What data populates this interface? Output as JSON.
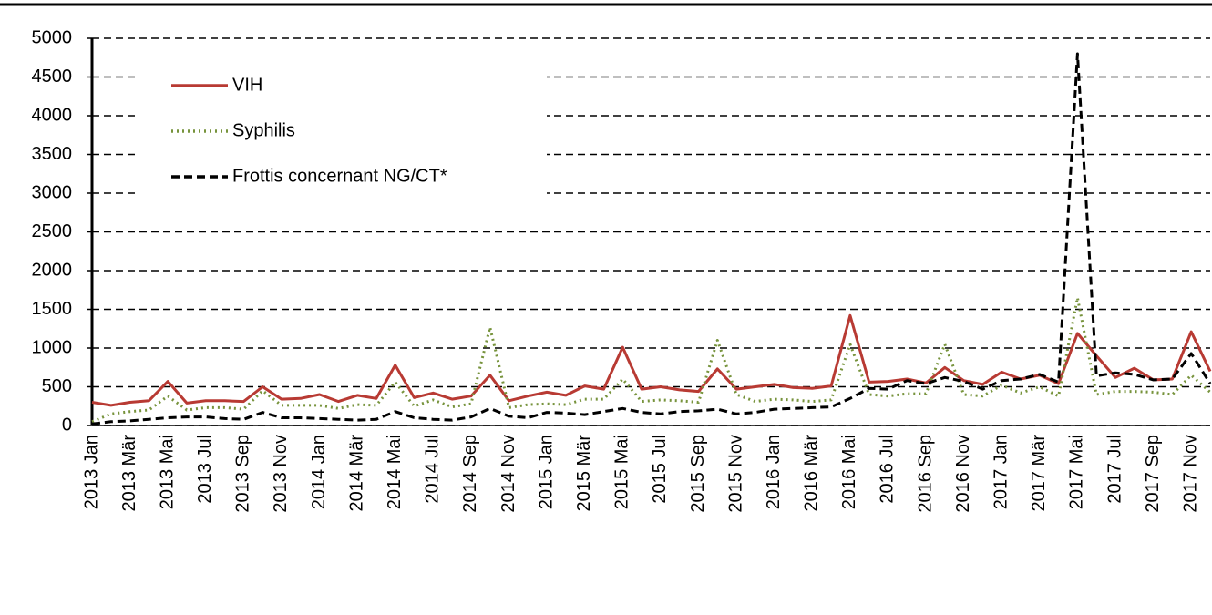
{
  "chart_data": {
    "type": "line",
    "categories": [
      "2013 Jan",
      null,
      "2013 Mär",
      null,
      "2013 Mai",
      null,
      "2013 Jul",
      null,
      "2013 Sep",
      null,
      "2013 Nov",
      null,
      "2014 Jan",
      null,
      "2014 Mär",
      null,
      "2014 Mai",
      null,
      "2014 Jul",
      null,
      "2014 Sep",
      null,
      "2014 Nov",
      null,
      "2015 Jan",
      null,
      "2015 Mär",
      null,
      "2015 Mai",
      null,
      "2015 Jul",
      null,
      "2015 Sep",
      null,
      "2015 Nov",
      null,
      "2016 Jan",
      null,
      "2016 Mär",
      null,
      "2016 Mai",
      null,
      "2016 Jul",
      null,
      "2016 Sep",
      null,
      "2016 Nov",
      null,
      "2017 Jan",
      null,
      "2017 Mär",
      null,
      "2017 Mai",
      null,
      "2017 Jul",
      null,
      "2017 Sep",
      null,
      "2017 Nov",
      null
    ],
    "series": [
      {
        "name": "VIH",
        "color": "#b83a33",
        "line_style": "solid",
        "values": [
          300,
          260,
          300,
          320,
          570,
          290,
          320,
          320,
          310,
          500,
          340,
          350,
          400,
          310,
          390,
          350,
          780,
          360,
          420,
          340,
          380,
          650,
          320,
          380,
          430,
          390,
          510,
          470,
          1010,
          470,
          500,
          460,
          440,
          730,
          470,
          500,
          530,
          490,
          480,
          510,
          1420,
          560,
          570,
          600,
          550,
          750,
          580,
          530,
          690,
          600,
          650,
          540,
          1190,
          900,
          620,
          740,
          590,
          600,
          1210,
          700
        ]
      },
      {
        "name": "Syphilis",
        "color": "#77933c",
        "line_style": "dotted",
        "values": [
          50,
          150,
          180,
          200,
          380,
          200,
          230,
          230,
          210,
          450,
          260,
          260,
          260,
          220,
          270,
          260,
          560,
          250,
          330,
          240,
          280,
          1270,
          230,
          270,
          280,
          270,
          340,
          340,
          600,
          310,
          330,
          320,
          300,
          1100,
          400,
          310,
          340,
          330,
          310,
          330,
          1050,
          400,
          380,
          410,
          410,
          1050,
          400,
          380,
          520,
          420,
          500,
          380,
          1650,
          400,
          440,
          440,
          430,
          400,
          650,
          430
        ]
      },
      {
        "name": "Frottis concernant NG/CT*",
        "color": "#000000",
        "line_style": "dashed",
        "values": [
          20,
          50,
          60,
          80,
          100,
          110,
          110,
          90,
          80,
          170,
          100,
          100,
          90,
          80,
          70,
          80,
          180,
          100,
          80,
          70,
          110,
          220,
          120,
          100,
          170,
          160,
          140,
          180,
          220,
          170,
          150,
          180,
          190,
          210,
          150,
          170,
          210,
          220,
          230,
          240,
          350,
          480,
          470,
          580,
          540,
          620,
          570,
          470,
          580,
          600,
          660,
          560,
          4800,
          640,
          680,
          660,
          590,
          600,
          930,
          540
        ]
      }
    ],
    "ylim": [
      0,
      5000
    ],
    "yticks": [
      0,
      500,
      1000,
      1500,
      2000,
      2500,
      3000,
      3500,
      4000,
      4500,
      5000
    ],
    "grid": true,
    "legend": "upper left"
  }
}
